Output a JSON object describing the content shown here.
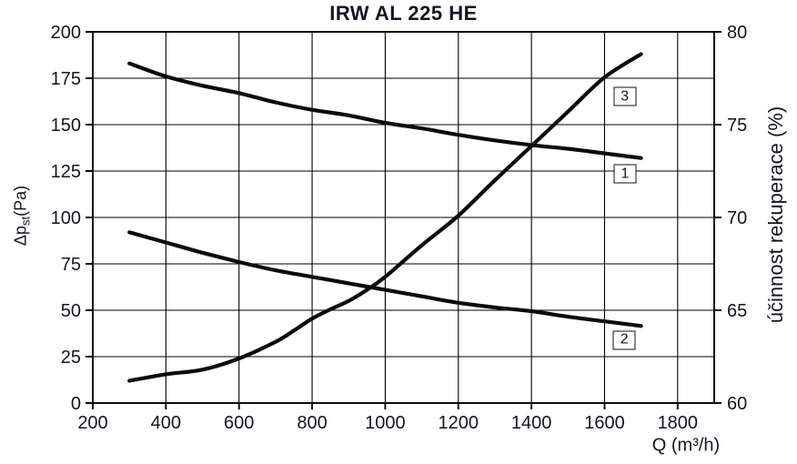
{
  "chart_data": {
    "type": "line",
    "title": "IRW AL 225 HE",
    "grid": true,
    "legend_position": "none",
    "line_color": "#0b0b0b",
    "x_axis": {
      "label": "Q (m³/h)",
      "min": 200,
      "max": 1900,
      "ticks": [
        200,
        400,
        600,
        800,
        1000,
        1200,
        1400,
        1600,
        1800
      ]
    },
    "y_left": {
      "label": "Δpₛₜ(Pa)",
      "label_parts": {
        "prefix": "Δp",
        "sub": "st",
        "suffix": "(Pa)"
      },
      "min": 0,
      "max": 200,
      "ticks": [
        0,
        25,
        50,
        75,
        100,
        125,
        150,
        175,
        200
      ]
    },
    "y_right": {
      "label": "účinnost rekuperace (%)",
      "min": 60,
      "max": 80,
      "ticks": [
        60,
        65,
        70,
        75,
        80
      ]
    },
    "series": [
      {
        "id": "1",
        "curve_label": "1",
        "axis": "right",
        "x": [
          300,
          400,
          500,
          600,
          700,
          800,
          900,
          1000,
          1100,
          1200,
          1300,
          1400,
          1500,
          1600,
          1700
        ],
        "pa": [
          183,
          176,
          171,
          167,
          162,
          158,
          155,
          151,
          148,
          144.5,
          141.5,
          139,
          137,
          134.5,
          132
        ],
        "pct": [
          78.3,
          77.6,
          77.1,
          76.7,
          76.2,
          75.8,
          75.5,
          75.1,
          74.8,
          74.5,
          74.2,
          73.9,
          73.7,
          73.5,
          73.2
        ],
        "label_box": {
          "q": 1656,
          "pa": 123.5
        }
      },
      {
        "id": "2",
        "curve_label": "2",
        "axis": "right",
        "x": [
          300,
          400,
          500,
          600,
          700,
          800,
          900,
          1000,
          1100,
          1200,
          1300,
          1400,
          1500,
          1600,
          1700
        ],
        "pa": [
          92,
          86.5,
          81,
          76,
          71.5,
          68,
          64.5,
          61,
          57.5,
          54,
          51.5,
          49.5,
          46.5,
          44,
          41.5
        ],
        "pct": [
          69.2,
          68.7,
          68.1,
          67.6,
          67.2,
          66.8,
          66.5,
          66.1,
          65.8,
          65.4,
          65.2,
          65.0,
          64.7,
          64.4,
          64.2
        ],
        "label_box": {
          "q": 1654,
          "pa": 34
        }
      },
      {
        "id": "3",
        "curve_label": "3",
        "axis": "left",
        "x": [
          300,
          400,
          500,
          600,
          700,
          750,
          800,
          850,
          900,
          950,
          1000,
          1100,
          1200,
          1300,
          1400,
          1500,
          1600,
          1700
        ],
        "pa": [
          12,
          15.5,
          18,
          24,
          33,
          39,
          45.5,
          50.5,
          55,
          61,
          68,
          85,
          101,
          120,
          138.5,
          157,
          175.5,
          188
        ],
        "label_box": {
          "q": 1655,
          "pa": 165
        }
      }
    ]
  }
}
